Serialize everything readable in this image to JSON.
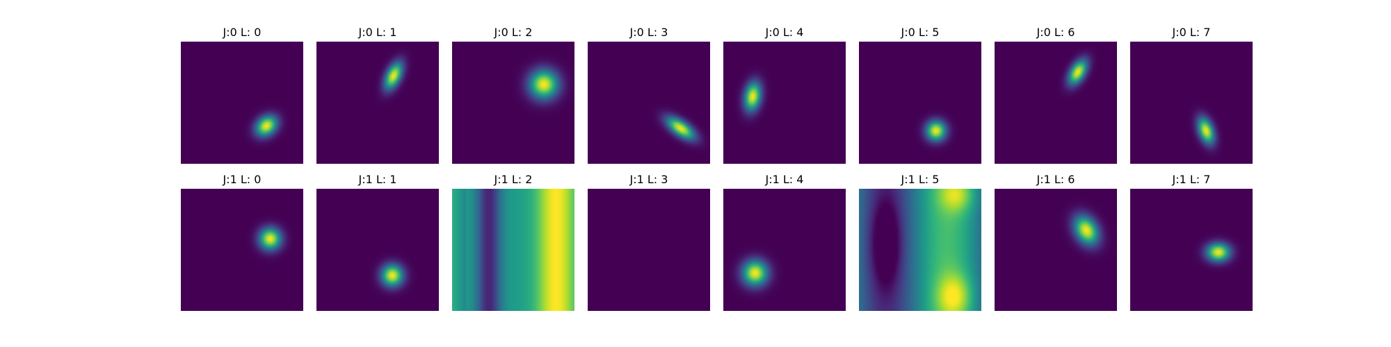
{
  "chart_data": {
    "type": "heatmap",
    "colormap": "viridis",
    "grid": {
      "rows": 2,
      "cols": 8
    },
    "panels": [
      {
        "title": "J:0 L: 0",
        "pattern": "blob",
        "cx": 0.7,
        "cy": 0.69,
        "sx": 0.065,
        "sy": 0.05,
        "theta": -40
      },
      {
        "title": "J:0 L: 1",
        "pattern": "blob",
        "cx": 0.63,
        "cy": 0.28,
        "sx": 0.04,
        "sy": 0.08,
        "theta": 25
      },
      {
        "title": "J:0 L: 2",
        "pattern": "blob",
        "cx": 0.75,
        "cy": 0.35,
        "sx": 0.08,
        "sy": 0.08,
        "theta": 0
      },
      {
        "title": "J:0 L: 3",
        "pattern": "blob",
        "cx": 0.76,
        "cy": 0.71,
        "sx": 0.09,
        "sy": 0.04,
        "theta": 35
      },
      {
        "title": "J:0 L: 4",
        "pattern": "blob",
        "cx": 0.24,
        "cy": 0.45,
        "sx": 0.045,
        "sy": 0.08,
        "theta": 10
      },
      {
        "title": "J:0 L: 5",
        "pattern": "blob",
        "cx": 0.63,
        "cy": 0.73,
        "sx": 0.055,
        "sy": 0.055,
        "theta": 0
      },
      {
        "title": "J:0 L: 6",
        "pattern": "blob",
        "cx": 0.68,
        "cy": 0.25,
        "sx": 0.04,
        "sy": 0.075,
        "theta": 30
      },
      {
        "title": "J:0 L: 7",
        "pattern": "blob",
        "cx": 0.62,
        "cy": 0.73,
        "sx": 0.04,
        "sy": 0.075,
        "theta": -20
      },
      {
        "title": "J:1 L: 0",
        "pattern": "blob",
        "cx": 0.73,
        "cy": 0.41,
        "sx": 0.06,
        "sy": 0.06,
        "theta": 0
      },
      {
        "title": "J:1 L: 1",
        "pattern": "blob",
        "cx": 0.62,
        "cy": 0.71,
        "sx": 0.06,
        "sy": 0.06,
        "theta": 0
      },
      {
        "title": "J:1 L: 2",
        "pattern": "stripes"
      },
      {
        "title": "J:1 L: 3",
        "pattern": "empty"
      },
      {
        "title": "J:1 L: 4",
        "pattern": "blob",
        "cx": 0.26,
        "cy": 0.69,
        "sx": 0.07,
        "sy": 0.07,
        "theta": 0
      },
      {
        "title": "J:1 L: 5",
        "pattern": "waves"
      },
      {
        "title": "J:1 L: 6",
        "pattern": "blob",
        "cx": 0.75,
        "cy": 0.34,
        "sx": 0.06,
        "sy": 0.085,
        "theta": -30
      },
      {
        "title": "J:1 L: 7",
        "pattern": "blob",
        "cx": 0.72,
        "cy": 0.52,
        "sx": 0.065,
        "sy": 0.05,
        "theta": 0
      }
    ]
  }
}
